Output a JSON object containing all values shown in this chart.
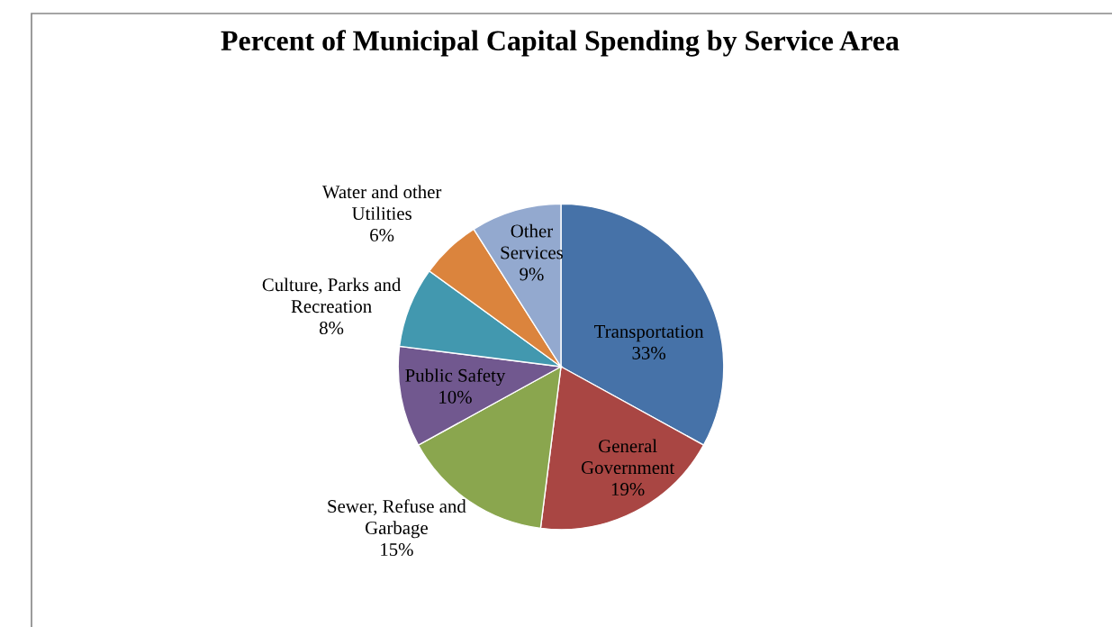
{
  "chart_data": {
    "type": "pie",
    "title": "Percent of Municipal Capital Spending by Service Area",
    "categories": [
      "Transportation",
      "General\nGovernment",
      "Sewer, Refuse and\nGarbage",
      "Public Safety",
      "Culture, Parks and\nRecreation",
      "Water and other\nUtilities",
      "Other\nServices"
    ],
    "values": [
      33,
      19,
      15,
      10,
      8,
      6,
      9
    ],
    "value_labels": [
      "33%",
      "19%",
      "15%",
      "10%",
      "8%",
      "6%",
      "9%"
    ],
    "colors": [
      "#4672a8",
      "#a94643",
      "#8aa64e",
      "#71588f",
      "#4298af",
      "#db843d",
      "#93a9cf"
    ],
    "legend": false
  }
}
